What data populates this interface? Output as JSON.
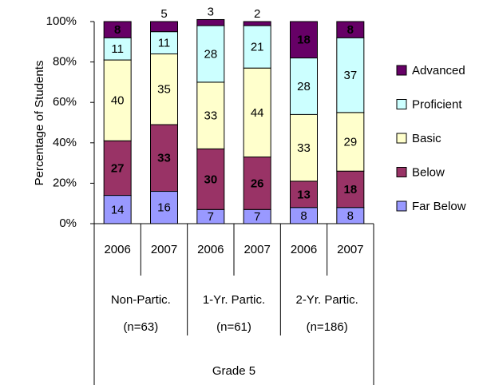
{
  "chart_data": {
    "type": "stacked_bar",
    "y_label": "Percentage of Students",
    "categories": [
      "2006",
      "2007",
      "2006",
      "2007",
      "2006",
      "2007"
    ],
    "groups": [
      {
        "name": "Non-Partic.",
        "n": "(n=63)"
      },
      {
        "name": "1-Yr. Partic.",
        "n": "(n=61)"
      },
      {
        "name": "2-Yr. Partic.",
        "n": "(n=186)"
      }
    ],
    "supergroup": "Grade 5",
    "series": [
      {
        "name": "Far Below",
        "color": "#9999ff",
        "label_color": "#000000",
        "values": [
          14,
          16,
          7,
          7,
          8,
          8
        ]
      },
      {
        "name": "Below",
        "color": "#993366",
        "label_color": "#ffffff",
        "values": [
          27,
          33,
          30,
          26,
          13,
          18
        ]
      },
      {
        "name": "Basic",
        "color": "#ffffcc",
        "label_color": "#000000",
        "values": [
          40,
          35,
          33,
          44,
          33,
          29
        ]
      },
      {
        "name": "Proficient",
        "color": "#ccffff",
        "label_color": "#000000",
        "values": [
          11,
          11,
          28,
          21,
          28,
          37
        ]
      },
      {
        "name": "Advanced",
        "color": "#660066",
        "label_color": "#ffffff",
        "values": [
          8,
          5,
          3,
          2,
          18,
          8
        ]
      }
    ],
    "ylim": [
      0,
      100
    ],
    "yticks": [
      {
        "value": 0,
        "label": "0%"
      },
      {
        "value": 20,
        "label": "20%"
      },
      {
        "value": 40,
        "label": "40%"
      },
      {
        "value": 60,
        "label": "60%"
      },
      {
        "value": 80,
        "label": "80%"
      },
      {
        "value": 100,
        "label": "100%"
      }
    ],
    "legend": "right"
  }
}
